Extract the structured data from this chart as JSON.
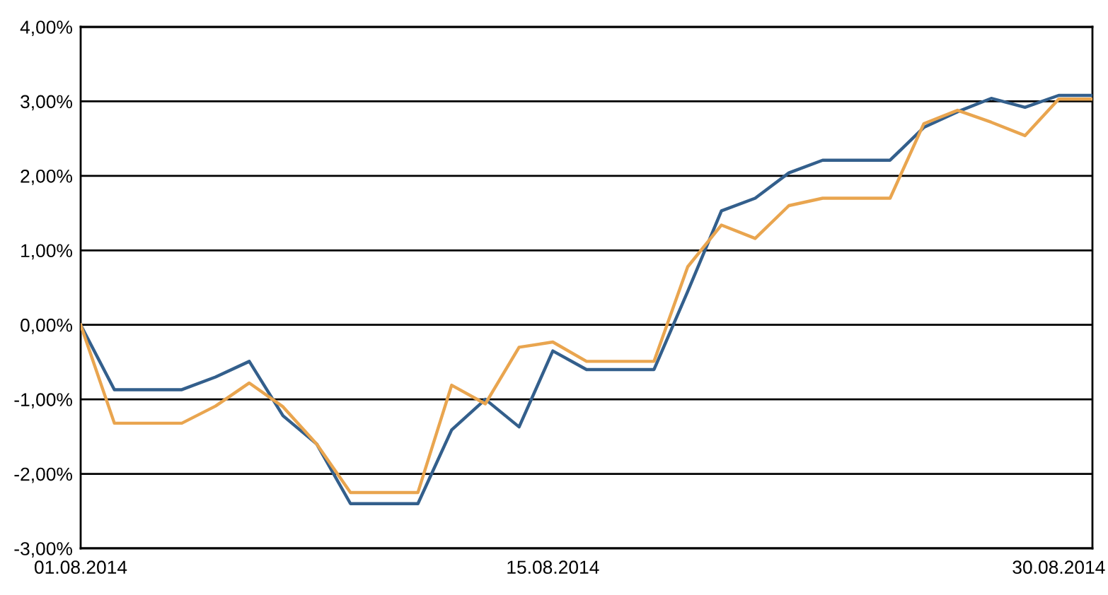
{
  "chart_data": {
    "type": "line",
    "x": [
      "2014-08-01",
      "2014-08-02",
      "2014-08-03",
      "2014-08-04",
      "2014-08-05",
      "2014-08-06",
      "2014-08-07",
      "2014-08-08",
      "2014-08-09",
      "2014-08-10",
      "2014-08-11",
      "2014-08-12",
      "2014-08-13",
      "2014-08-14",
      "2014-08-15",
      "2014-08-16",
      "2014-08-17",
      "2014-08-18",
      "2014-08-19",
      "2014-08-20",
      "2014-08-21",
      "2014-08-22",
      "2014-08-23",
      "2014-08-24",
      "2014-08-25",
      "2014-08-26",
      "2014-08-27",
      "2014-08-28",
      "2014-08-29",
      "2014-08-30",
      "2014-08-31"
    ],
    "series": [
      {
        "color": "#335f8c",
        "values": [
          0,
          -0.87,
          -0.87,
          -0.87,
          -0.7,
          -0.49,
          -1.22,
          -1.6,
          -2.4,
          -2.4,
          -2.4,
          -1.41,
          -1.0,
          -1.37,
          -0.35,
          -0.6,
          -0.6,
          -0.6,
          0.45,
          1.53,
          1.7,
          2.04,
          2.21,
          2.21,
          2.21,
          2.65,
          2.86,
          3.04,
          2.92,
          3.08,
          3.08
        ]
      },
      {
        "color": "#e9a54f",
        "values": [
          0,
          -1.32,
          -1.32,
          -1.32,
          -1.09,
          -0.78,
          -1.1,
          -1.6,
          -2.25,
          -2.25,
          -2.25,
          -0.81,
          -1.06,
          -0.3,
          -0.23,
          -0.49,
          -0.49,
          -0.49,
          0.78,
          1.34,
          1.16,
          1.6,
          1.7,
          1.7,
          1.7,
          2.7,
          2.88,
          2.72,
          2.54,
          3.03,
          3.03
        ]
      }
    ],
    "xlim": [
      "2014-08-01",
      "2014-08-31"
    ],
    "xticks": [
      {
        "value": "2014-08-01",
        "label": "01.08.2014"
      },
      {
        "value": "2014-08-15",
        "label": "15.08.2014"
      },
      {
        "value": "2014-08-30",
        "label": "30.08.2014"
      }
    ],
    "ylim": [
      -3,
      4
    ],
    "yticks": [
      {
        "value": -3,
        "label": "-3,00%"
      },
      {
        "value": -2,
        "label": "-2,00%"
      },
      {
        "value": -1,
        "label": "-1,00%"
      },
      {
        "value": 0,
        "label": "0,00%"
      },
      {
        "value": 1,
        "label": "1,00%"
      },
      {
        "value": 2,
        "label": "2,00%"
      },
      {
        "value": 3,
        "label": "3,00%"
      },
      {
        "value": 4,
        "label": "4,00%"
      }
    ],
    "grid": "y"
  }
}
